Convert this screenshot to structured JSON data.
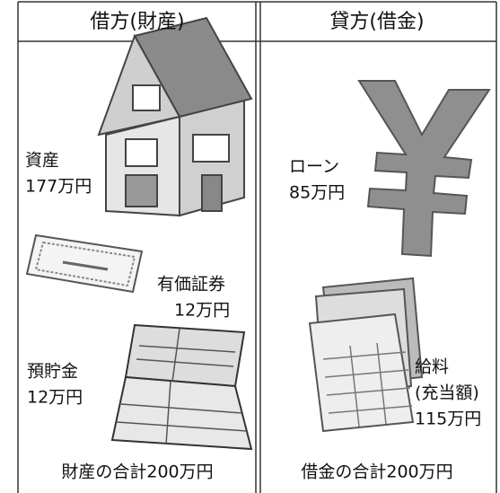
{
  "header": {
    "debit": "借方(財産)",
    "credit": "貸方(借金)"
  },
  "debit_items": [
    {
      "name": "資産",
      "amount": "177万円"
    },
    {
      "name": "有価証券",
      "amount": "12万円"
    },
    {
      "name": "預貯金",
      "amount": "12万円"
    }
  ],
  "credit_items": [
    {
      "name": "ローン",
      "amount": "85万円"
    },
    {
      "name": "給料",
      "note": "(充当額)",
      "amount": "115万円"
    }
  ],
  "footer": {
    "debit_total": "財産の合計200万円",
    "credit_total": "借金の合計200万円"
  }
}
